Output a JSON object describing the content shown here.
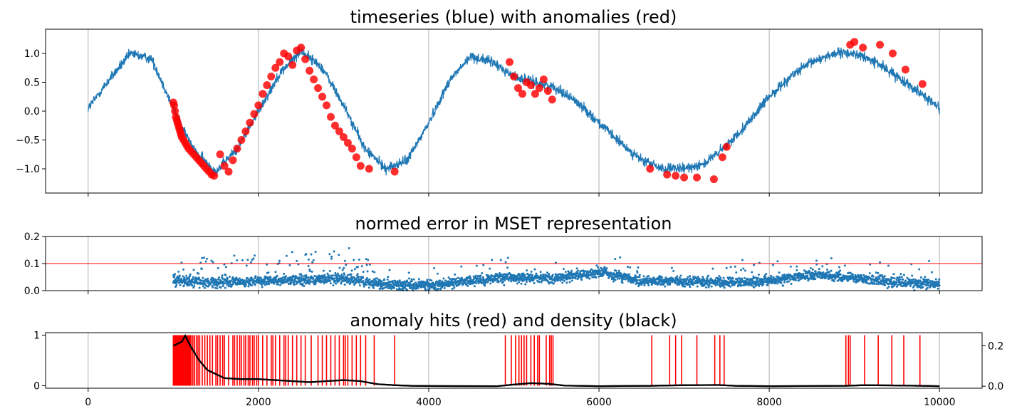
{
  "colors": {
    "series": "#1f77b4",
    "anomaly": "#ff0000",
    "density": "#000000",
    "grid": "#b0b0b0",
    "axis": "#000000"
  },
  "chart_data": [
    {
      "type": "line",
      "title": "timeseries (blue) with anomalies (red)",
      "xlim": [
        -500,
        10500
      ],
      "ylim": [
        -1.42,
        1.42
      ],
      "x_ticks": [
        0,
        2000,
        4000,
        6000,
        8000,
        10000
      ],
      "y_ticks": [
        -1.0,
        -0.5,
        0.0,
        0.5,
        1.0
      ],
      "y_tick_labels": [
        "−1.0",
        "−0.5",
        "0.0",
        "0.5",
        "1.0"
      ],
      "grid": "vertical",
      "series": [
        {
          "name": "timeseries",
          "color": "#1f77b4",
          "points": [
            [
              0,
              0.05
            ],
            [
              250,
              0.55
            ],
            [
              500,
              1.0
            ],
            [
              750,
              0.9
            ],
            [
              1000,
              0.05
            ],
            [
              1250,
              -0.7
            ],
            [
              1500,
              -1.05
            ],
            [
              1750,
              -0.65
            ],
            [
              2000,
              0.0
            ],
            [
              2250,
              0.65
            ],
            [
              2500,
              1.05
            ],
            [
              2750,
              0.75
            ],
            [
              3000,
              0.1
            ],
            [
              3250,
              -0.65
            ],
            [
              3500,
              -1.0
            ],
            [
              3750,
              -0.85
            ],
            [
              4000,
              -0.2
            ],
            [
              4250,
              0.55
            ],
            [
              4500,
              0.95
            ],
            [
              4750,
              0.85
            ],
            [
              5000,
              0.6
            ],
            [
              5250,
              0.5
            ],
            [
              5500,
              0.4
            ],
            [
              5750,
              0.15
            ],
            [
              6000,
              -0.2
            ],
            [
              6250,
              -0.55
            ],
            [
              6500,
              -0.85
            ],
            [
              6750,
              -1.0
            ],
            [
              7000,
              -1.0
            ],
            [
              7250,
              -0.9
            ],
            [
              7500,
              -0.6
            ],
            [
              7750,
              -0.2
            ],
            [
              8000,
              0.25
            ],
            [
              8250,
              0.6
            ],
            [
              8500,
              0.85
            ],
            [
              8750,
              1.0
            ],
            [
              9000,
              1.0
            ],
            [
              9250,
              0.85
            ],
            [
              9500,
              0.6
            ],
            [
              9750,
              0.35
            ],
            [
              10000,
              0.05
            ]
          ],
          "noise_band": 0.15
        },
        {
          "name": "anomalies",
          "type": "scatter",
          "color": "#ff0000",
          "points": [
            [
              1000,
              0.15
            ],
            [
              1010,
              0.1
            ],
            [
              1020,
              0.0
            ],
            [
              1030,
              -0.1
            ],
            [
              1040,
              -0.15
            ],
            [
              1050,
              -0.2
            ],
            [
              1060,
              -0.25
            ],
            [
              1070,
              -0.3
            ],
            [
              1080,
              -0.35
            ],
            [
              1090,
              -0.4
            ],
            [
              1100,
              -0.45
            ],
            [
              1120,
              -0.5
            ],
            [
              1140,
              -0.55
            ],
            [
              1160,
              -0.6
            ],
            [
              1180,
              -0.65
            ],
            [
              1210,
              -0.7
            ],
            [
              1240,
              -0.75
            ],
            [
              1270,
              -0.8
            ],
            [
              1300,
              -0.85
            ],
            [
              1330,
              -0.9
            ],
            [
              1360,
              -0.95
            ],
            [
              1390,
              -1.0
            ],
            [
              1420,
              -1.05
            ],
            [
              1450,
              -1.1
            ],
            [
              1480,
              -1.12
            ],
            [
              1550,
              -0.75
            ],
            [
              1600,
              -0.95
            ],
            [
              1650,
              -1.05
            ],
            [
              1700,
              -0.85
            ],
            [
              1750,
              -0.65
            ],
            [
              1800,
              -0.5
            ],
            [
              1850,
              -0.35
            ],
            [
              1900,
              -0.2
            ],
            [
              1950,
              -0.05
            ],
            [
              2000,
              0.1
            ],
            [
              2050,
              0.3
            ],
            [
              2100,
              0.45
            ],
            [
              2150,
              0.6
            ],
            [
              2200,
              0.75
            ],
            [
              2250,
              0.85
            ],
            [
              2300,
              1.0
            ],
            [
              2350,
              0.95
            ],
            [
              2400,
              0.8
            ],
            [
              2450,
              1.05
            ],
            [
              2500,
              1.1
            ],
            [
              2550,
              0.9
            ],
            [
              2600,
              0.7
            ],
            [
              2650,
              0.55
            ],
            [
              2700,
              0.4
            ],
            [
              2750,
              0.25
            ],
            [
              2800,
              0.1
            ],
            [
              2850,
              -0.1
            ],
            [
              2900,
              -0.25
            ],
            [
              2950,
              -0.35
            ],
            [
              3000,
              -0.45
            ],
            [
              3050,
              -0.55
            ],
            [
              3100,
              -0.65
            ],
            [
              3150,
              -0.8
            ],
            [
              3200,
              -0.95
            ],
            [
              3300,
              -1.0
            ],
            [
              3600,
              -1.05
            ],
            [
              4950,
              0.85
            ],
            [
              5000,
              0.6
            ],
            [
              5050,
              0.4
            ],
            [
              5100,
              0.3
            ],
            [
              5150,
              0.5
            ],
            [
              5200,
              0.45
            ],
            [
              5250,
              0.3
            ],
            [
              5300,
              0.4
            ],
            [
              5350,
              0.55
            ],
            [
              5400,
              0.35
            ],
            [
              5450,
              0.2
            ],
            [
              6600,
              -1.0
            ],
            [
              6800,
              -1.1
            ],
            [
              6900,
              -1.12
            ],
            [
              7000,
              -1.15
            ],
            [
              7150,
              -1.15
            ],
            [
              7350,
              -1.18
            ],
            [
              7450,
              -0.8
            ],
            [
              7500,
              -0.62
            ],
            [
              8950,
              1.15
            ],
            [
              9000,
              1.2
            ],
            [
              9100,
              1.1
            ],
            [
              9300,
              1.15
            ],
            [
              9450,
              1.0
            ],
            [
              9600,
              0.72
            ],
            [
              9800,
              0.47
            ]
          ]
        }
      ]
    },
    {
      "type": "scatter",
      "title": "normed error in MSET representation",
      "xlim": [
        -500,
        10500
      ],
      "ylim": [
        0.0,
        0.2
      ],
      "x_ticks": [
        0,
        2000,
        4000,
        6000,
        8000,
        10000
      ],
      "y_ticks": [
        0.0,
        0.1,
        0.2
      ],
      "y_tick_labels": [
        "0.0",
        "0.1",
        "0.2"
      ],
      "grid": "vertical",
      "threshold": 0.1,
      "x_start": 1000,
      "x_end": 10000,
      "baseline": [
        [
          1000,
          0.035
        ],
        [
          1500,
          0.03
        ],
        [
          2000,
          0.035
        ],
        [
          2500,
          0.04
        ],
        [
          3000,
          0.045
        ],
        [
          3500,
          0.02
        ],
        [
          4000,
          0.02
        ],
        [
          4500,
          0.035
        ],
        [
          5000,
          0.05
        ],
        [
          5500,
          0.045
        ],
        [
          6000,
          0.07
        ],
        [
          6500,
          0.035
        ],
        [
          7000,
          0.035
        ],
        [
          7500,
          0.03
        ],
        [
          8000,
          0.035
        ],
        [
          8500,
          0.06
        ],
        [
          9000,
          0.045
        ],
        [
          9500,
          0.03
        ],
        [
          10000,
          0.025
        ]
      ],
      "series": [
        {
          "name": "normed error",
          "color": "#1f77b4"
        }
      ]
    },
    {
      "type": "line",
      "title": "anomaly hits (red) and density (black)",
      "xlim": [
        -500,
        10500
      ],
      "ylim": [
        -0.05,
        1.05
      ],
      "y2lim": [
        -0.01,
        0.265
      ],
      "x_ticks": [
        0,
        2000,
        4000,
        6000,
        8000,
        10000
      ],
      "x_tick_labels": [
        "0",
        "2000",
        "4000",
        "6000",
        "8000",
        "10000"
      ],
      "y_ticks": [
        0,
        1
      ],
      "y_tick_labels": [
        "0",
        "1"
      ],
      "y2_ticks": [
        0.0,
        0.2
      ],
      "y2_tick_labels": [
        "0.0",
        "0.2"
      ],
      "grid": "vertical",
      "hits": [
        1000,
        1010,
        1020,
        1030,
        1040,
        1050,
        1060,
        1070,
        1080,
        1090,
        1100,
        1110,
        1120,
        1130,
        1140,
        1150,
        1160,
        1170,
        1180,
        1190,
        1200,
        1210,
        1230,
        1250,
        1270,
        1290,
        1310,
        1340,
        1370,
        1400,
        1430,
        1460,
        1500,
        1520,
        1550,
        1580,
        1600,
        1650,
        1700,
        1720,
        1750,
        1780,
        1800,
        1830,
        1850,
        1880,
        1900,
        1930,
        1950,
        1980,
        2000,
        2050,
        2100,
        2150,
        2170,
        2200,
        2250,
        2300,
        2320,
        2350,
        2400,
        2450,
        2500,
        2550,
        2620,
        2700,
        2750,
        2800,
        2850,
        2900,
        2950,
        3000,
        3020,
        3050,
        3100,
        3150,
        3200,
        3260,
        3360,
        3600,
        4900,
        4970,
        5020,
        5060,
        5090,
        5120,
        5150,
        5200,
        5240,
        5280,
        5300,
        5380,
        5420,
        5440,
        5460,
        6620,
        6830,
        6900,
        6970,
        7150,
        7360,
        7420,
        7470,
        8900,
        8930,
        8950,
        9120,
        9280,
        9440,
        9580,
        9770
      ],
      "density": [
        [
          1000,
          0.2
        ],
        [
          1100,
          0.22
        ],
        [
          1140,
          0.25
        ],
        [
          1200,
          0.2
        ],
        [
          1300,
          0.13
        ],
        [
          1400,
          0.08
        ],
        [
          1500,
          0.06
        ],
        [
          1600,
          0.04
        ],
        [
          1800,
          0.035
        ],
        [
          2000,
          0.035
        ],
        [
          2200,
          0.03
        ],
        [
          2400,
          0.025
        ],
        [
          2600,
          0.02
        ],
        [
          2800,
          0.025
        ],
        [
          3000,
          0.03
        ],
        [
          3200,
          0.025
        ],
        [
          3400,
          0.01
        ],
        [
          3600,
          0.005
        ],
        [
          3800,
          0.002
        ],
        [
          4000,
          0.001
        ],
        [
          4800,
          0.0
        ],
        [
          5000,
          0.008
        ],
        [
          5200,
          0.015
        ],
        [
          5400,
          0.012
        ],
        [
          5600,
          0.003
        ],
        [
          6000,
          0.0
        ],
        [
          6600,
          0.002
        ],
        [
          7000,
          0.005
        ],
        [
          7400,
          0.006
        ],
        [
          7600,
          0.002
        ],
        [
          8000,
          0.0
        ],
        [
          8900,
          0.002
        ],
        [
          9100,
          0.005
        ],
        [
          9400,
          0.004
        ],
        [
          9800,
          0.002
        ],
        [
          10000,
          0.0
        ]
      ],
      "series": [
        {
          "name": "anomaly hits",
          "color": "#ff0000"
        },
        {
          "name": "density",
          "color": "#000000"
        }
      ]
    }
  ]
}
